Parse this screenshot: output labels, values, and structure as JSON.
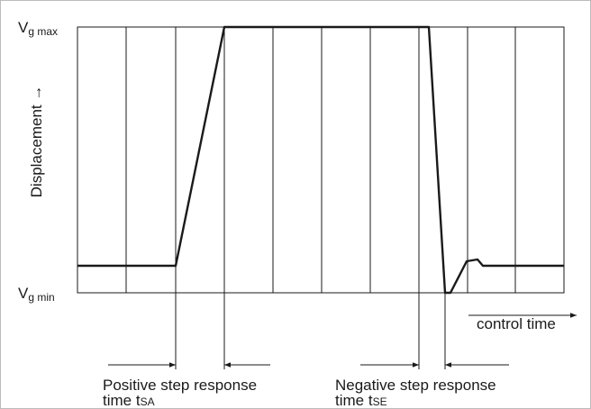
{
  "y_axis": {
    "label": "Displacement →",
    "max": {
      "symbol": "V",
      "subscript": "g max"
    },
    "min": {
      "symbol": "V",
      "subscript": "g min"
    }
  },
  "x_axis": {
    "label": "control time"
  },
  "annotations": [
    {
      "line1": "Positive step response",
      "line2": "time t",
      "subscript": "SA"
    },
    {
      "line1": "Negative step response",
      "line2": "time t",
      "subscript": "SE"
    }
  ]
}
